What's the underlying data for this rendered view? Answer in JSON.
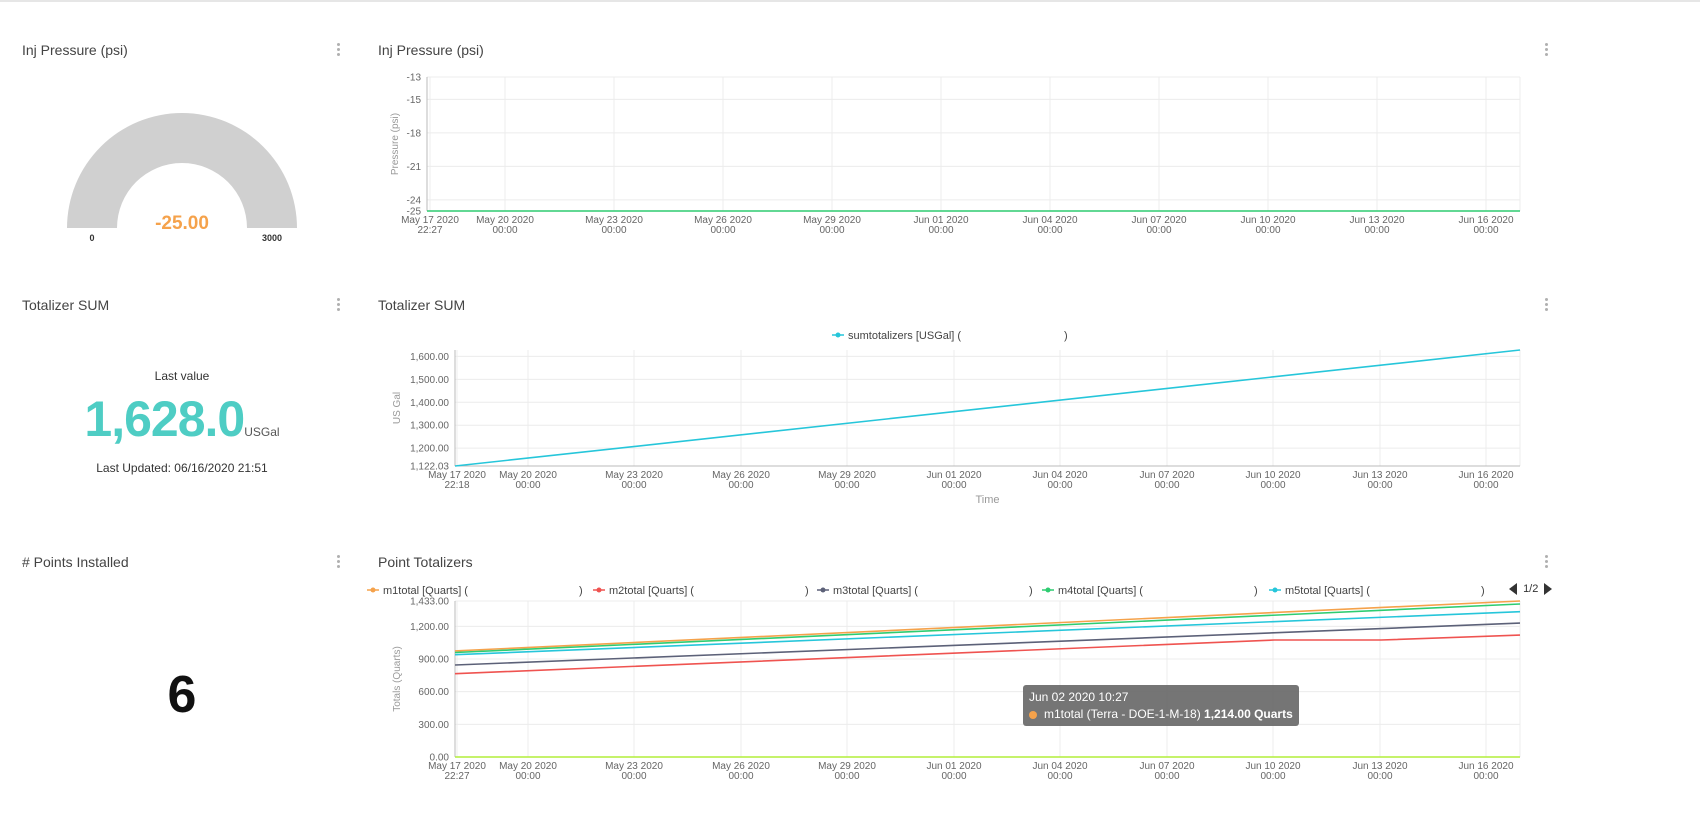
{
  "gauge_widget": {
    "title": "Inj Pressure (psi)",
    "value": "-25.00",
    "min_label": "0",
    "max_label": "3000",
    "value_color": "#f5a24b",
    "track_color": "#d0d0d0"
  },
  "pressure_chart_widget": {
    "title": "Inj Pressure (psi)"
  },
  "totalizer_value_widget": {
    "title": "Totalizer SUM",
    "caption": "Last value",
    "value": "1,628.0",
    "unit": "USGal",
    "updated": "Last Updated: 06/16/2020 21:51",
    "value_color": "#4ecdc4"
  },
  "totalizer_chart_widget": {
    "title": "Totalizer SUM"
  },
  "points_widget": {
    "title": "# Points Installed",
    "value": "6"
  },
  "point_totalizers_widget": {
    "title": "Point Totalizers",
    "legend_page": "1/2",
    "tooltip": {
      "title": "Jun 02 2020 10:27",
      "series": "m1total (Terra - DOE-1-M-18)",
      "value": "1,214.00 Quarts",
      "color": "#f5a24b"
    }
  },
  "chart_data": [
    {
      "type": "line",
      "title": "Inj Pressure (psi)",
      "xlabel": "",
      "ylabel": "Pressure (psi)",
      "ylim": [
        -25,
        -13
      ],
      "y_ticks": [
        "-13",
        "-15",
        "-18",
        "-21",
        "-24",
        "-25"
      ],
      "x_ticks": [
        [
          "May 17 2020",
          "22:27"
        ],
        [
          "May 20 2020",
          "00:00"
        ],
        [
          "May 23 2020",
          "00:00"
        ],
        [
          "May 26 2020",
          "00:00"
        ],
        [
          "May 29 2020",
          "00:00"
        ],
        [
          "Jun 01 2020",
          "00:00"
        ],
        [
          "Jun 04 2020",
          "00:00"
        ],
        [
          "Jun 07 2020",
          "00:00"
        ],
        [
          "Jun 10 2020",
          "00:00"
        ],
        [
          "Jun 13 2020",
          "00:00"
        ],
        [
          "Jun 16 2020",
          "00:00"
        ]
      ],
      "series": [
        {
          "color": "#2ecc71",
          "x": [
            "2020-05-17 22:27",
            "2020-06-16 21:51"
          ],
          "values": [
            -25,
            -25
          ]
        }
      ]
    },
    {
      "type": "line",
      "title": "Totalizer SUM",
      "xlabel": "Time",
      "ylabel": "US Gal",
      "ylim": [
        1122.03,
        1628
      ],
      "y_ticks": [
        "1,600.00",
        "1,500.00",
        "1,400.00",
        "1,300.00",
        "1,200.00",
        "1,122.03"
      ],
      "x_ticks": [
        [
          "May 17 2020",
          "22:18"
        ],
        [
          "May 20 2020",
          "00:00"
        ],
        [
          "May 23 2020",
          "00:00"
        ],
        [
          "May 26 2020",
          "00:00"
        ],
        [
          "May 29 2020",
          "00:00"
        ],
        [
          "Jun 01 2020",
          "00:00"
        ],
        [
          "Jun 04 2020",
          "00:00"
        ],
        [
          "Jun 07 2020",
          "00:00"
        ],
        [
          "Jun 10 2020",
          "00:00"
        ],
        [
          "Jun 13 2020",
          "00:00"
        ],
        [
          "Jun 16 2020",
          "00:00"
        ]
      ],
      "legend": [
        {
          "name": "sumtotalizers [USGal] (",
          "suffix": ")",
          "color": "#26c6da"
        }
      ],
      "series": [
        {
          "name": "sumtotalizers [USGal] (",
          "color": "#26c6da",
          "x": [
            "2020-05-17 22:18",
            "2020-06-16 21:51"
          ],
          "values": [
            1122.03,
            1628.0
          ]
        }
      ]
    },
    {
      "type": "line",
      "title": "Point Totalizers",
      "xlabel": "",
      "ylabel": "Totals (Quarts)",
      "ylim": [
        0,
        1433
      ],
      "y_ticks": [
        "1,433.00",
        "1,200.00",
        "900.00",
        "600.00",
        "300.00",
        "0.00"
      ],
      "x_ticks": [
        [
          "May 17 2020",
          "22:27"
        ],
        [
          "May 20 2020",
          "00:00"
        ],
        [
          "May 23 2020",
          "00:00"
        ],
        [
          "May 26 2020",
          "00:00"
        ],
        [
          "May 29 2020",
          "00:00"
        ],
        [
          "Jun 01 2020",
          "00:00"
        ],
        [
          "Jun 04 2020",
          "00:00"
        ],
        [
          "Jun 07 2020",
          "00:00"
        ],
        [
          "Jun 10 2020",
          "00:00"
        ],
        [
          "Jun 13 2020",
          "00:00"
        ],
        [
          "Jun 16 2020",
          "00:00"
        ]
      ],
      "legend": [
        {
          "name": "m1total [Quarts] (",
          "suffix": ")",
          "color": "#f5a24b"
        },
        {
          "name": "m2total [Quarts] (",
          "suffix": ")",
          "color": "#ef5350"
        },
        {
          "name": "m3total [Quarts] (",
          "suffix": ")",
          "color": "#5c6178"
        },
        {
          "name": "m4total [Quarts] (",
          "suffix": ")",
          "color": "#2ecc71"
        },
        {
          "name": "m5total [Quarts] (",
          "suffix": ")",
          "color": "#26c6da"
        }
      ],
      "series": [
        {
          "name": "m1total [Quarts] (",
          "color": "#f5a24b",
          "x": [
            "2020-05-17 22:27",
            "2020-06-16 21:51"
          ],
          "values": [
            975,
            1433
          ]
        },
        {
          "name": "m4total [Quarts] (",
          "color": "#2ecc71",
          "x": [
            "2020-05-17 22:27",
            "2020-06-16 21:51"
          ],
          "values": [
            960,
            1405
          ]
        },
        {
          "name": "m5total [Quarts] (",
          "color": "#26c6da",
          "x": [
            "2020-05-17 22:27",
            "2020-06-16 21:51"
          ],
          "values": [
            940,
            1335
          ]
        },
        {
          "name": "m3total [Quarts] (",
          "color": "#5c6178",
          "x": [
            "2020-05-17 22:27",
            "2020-06-16 21:51"
          ],
          "values": [
            845,
            1230
          ]
        },
        {
          "name": "m2total [Quarts] (",
          "color": "#ef5350",
          "x": [
            "2020-05-17 22:27",
            "2020-06-10 00:00",
            "2020-06-13 00:00",
            "2020-06-16 21:51"
          ],
          "values": [
            765,
            1075,
            1075,
            1120
          ]
        },
        {
          "color": "#b2ee3a",
          "x": [
            "2020-05-17 22:27",
            "2020-06-16 21:51"
          ],
          "values": [
            0,
            0
          ]
        }
      ]
    }
  ]
}
